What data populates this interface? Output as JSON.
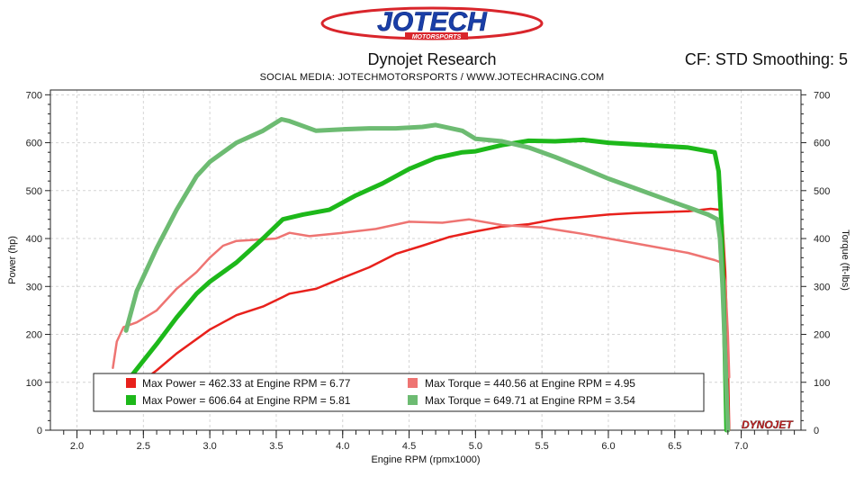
{
  "header": {
    "logo_text": "JOTECH",
    "logo_subtext": "MOTORSPORTS",
    "title": "Dynojet Research",
    "cf_text": "CF: STD Smoothing: 5",
    "subtitle": "SOCIAL MEDIA: JOTECHMOTORSPORTS   /   WWW.JOTECHRACING.COM"
  },
  "watermark": "DYNOJET",
  "colors": {
    "red_power": "#e8211c",
    "red_torque": "#ee7472",
    "green_power": "#1db81a",
    "green_torque": "#6dbb72"
  },
  "chart_data": {
    "type": "line",
    "xlabel": "Engine RPM (rpmx1000)",
    "ylabel_left": "Power (hp)",
    "ylabel_right": "Torque (ft-lbs)",
    "xlim": [
      1.8,
      7.45
    ],
    "ylim": [
      0,
      710
    ],
    "x_ticks": [
      "2.0",
      "2.5",
      "3.0",
      "3.5",
      "4.0",
      "4.5",
      "5.0",
      "5.5",
      "6.0",
      "6.5",
      "7.0"
    ],
    "y_ticks": [
      "0",
      "100",
      "200",
      "300",
      "400",
      "500",
      "600",
      "700"
    ],
    "grid": true,
    "legend_placement": "bottom-left",
    "series": [
      {
        "legend": "Max Power = 462.33 at Engine RPM = 6.77",
        "color_key": "red_power",
        "width": 2.5,
        "points": [
          [
            2.48,
            100
          ],
          [
            2.6,
            125
          ],
          [
            2.75,
            160
          ],
          [
            2.9,
            190
          ],
          [
            3.0,
            210
          ],
          [
            3.2,
            240
          ],
          [
            3.4,
            258
          ],
          [
            3.55,
            278
          ],
          [
            3.6,
            285
          ],
          [
            3.8,
            295
          ],
          [
            4.0,
            318
          ],
          [
            4.2,
            340
          ],
          [
            4.4,
            368
          ],
          [
            4.6,
            385
          ],
          [
            4.8,
            403
          ],
          [
            5.0,
            415
          ],
          [
            5.2,
            425
          ],
          [
            5.4,
            430
          ],
          [
            5.6,
            440
          ],
          [
            5.8,
            445
          ],
          [
            6.0,
            450
          ],
          [
            6.2,
            453
          ],
          [
            6.4,
            455
          ],
          [
            6.6,
            457
          ],
          [
            6.77,
            462
          ],
          [
            6.84,
            460
          ],
          [
            6.86,
            430
          ],
          [
            6.88,
            330
          ],
          [
            6.9,
            150
          ],
          [
            6.91,
            0
          ]
        ]
      },
      {
        "legend": "Max Torque = 440.56 at Engine RPM = 4.95",
        "color_key": "red_torque",
        "width": 2.5,
        "points": [
          [
            2.27,
            130
          ],
          [
            2.3,
            185
          ],
          [
            2.35,
            215
          ],
          [
            2.45,
            225
          ],
          [
            2.6,
            250
          ],
          [
            2.75,
            295
          ],
          [
            2.9,
            330
          ],
          [
            3.0,
            360
          ],
          [
            3.1,
            385
          ],
          [
            3.2,
            395
          ],
          [
            3.5,
            400
          ],
          [
            3.6,
            412
          ],
          [
            3.75,
            405
          ],
          [
            4.0,
            412
          ],
          [
            4.25,
            420
          ],
          [
            4.5,
            435
          ],
          [
            4.75,
            433
          ],
          [
            4.95,
            440
          ],
          [
            5.2,
            428
          ],
          [
            5.5,
            423
          ],
          [
            5.8,
            410
          ],
          [
            6.0,
            400
          ],
          [
            6.3,
            385
          ],
          [
            6.6,
            370
          ],
          [
            6.8,
            355
          ],
          [
            6.85,
            350
          ],
          [
            6.88,
            310
          ],
          [
            6.9,
            200
          ],
          [
            6.91,
            110
          ]
        ]
      },
      {
        "legend": "Max Power = 606.64 at Engine RPM = 5.81",
        "color_key": "green_power",
        "width": 5,
        "points": [
          [
            2.4,
            110
          ],
          [
            2.5,
            145
          ],
          [
            2.6,
            180
          ],
          [
            2.75,
            235
          ],
          [
            2.9,
            285
          ],
          [
            3.0,
            310
          ],
          [
            3.2,
            350
          ],
          [
            3.4,
            400
          ],
          [
            3.55,
            440
          ],
          [
            3.7,
            450
          ],
          [
            3.9,
            460
          ],
          [
            4.1,
            490
          ],
          [
            4.3,
            515
          ],
          [
            4.5,
            545
          ],
          [
            4.7,
            568
          ],
          [
            4.9,
            580
          ],
          [
            5.0,
            582
          ],
          [
            5.2,
            595
          ],
          [
            5.4,
            604
          ],
          [
            5.6,
            603
          ],
          [
            5.81,
            606
          ],
          [
            6.0,
            600
          ],
          [
            6.3,
            595
          ],
          [
            6.6,
            590
          ],
          [
            6.8,
            580
          ],
          [
            6.83,
            540
          ],
          [
            6.85,
            440
          ],
          [
            6.87,
            250
          ],
          [
            6.89,
            0
          ]
        ]
      },
      {
        "legend": "Max Torque = 649.71 at Engine RPM = 3.54",
        "color_key": "green_torque",
        "width": 5,
        "points": [
          [
            2.37,
            208
          ],
          [
            2.45,
            290
          ],
          [
            2.6,
            380
          ],
          [
            2.75,
            460
          ],
          [
            2.9,
            530
          ],
          [
            3.0,
            560
          ],
          [
            3.2,
            600
          ],
          [
            3.4,
            625
          ],
          [
            3.54,
            649
          ],
          [
            3.6,
            645
          ],
          [
            3.8,
            625
          ],
          [
            4.0,
            628
          ],
          [
            4.2,
            630
          ],
          [
            4.4,
            630
          ],
          [
            4.6,
            633
          ],
          [
            4.7,
            637
          ],
          [
            4.9,
            625
          ],
          [
            5.0,
            608
          ],
          [
            5.2,
            603
          ],
          [
            5.4,
            590
          ],
          [
            5.6,
            570
          ],
          [
            5.8,
            548
          ],
          [
            6.0,
            525
          ],
          [
            6.2,
            505
          ],
          [
            6.4,
            485
          ],
          [
            6.6,
            465
          ],
          [
            6.75,
            450
          ],
          [
            6.82,
            440
          ],
          [
            6.84,
            400
          ],
          [
            6.86,
            300
          ],
          [
            6.88,
            150
          ],
          [
            6.9,
            0
          ]
        ]
      }
    ]
  }
}
